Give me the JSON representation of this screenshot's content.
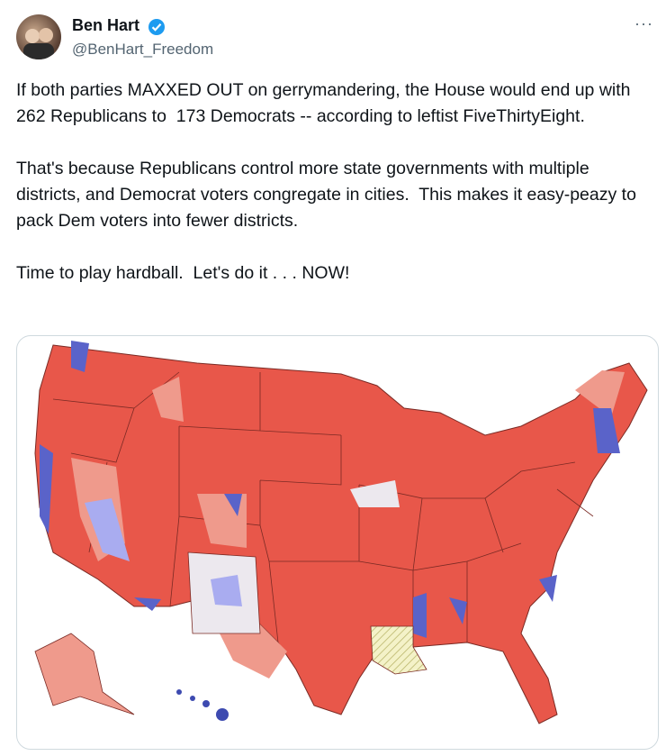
{
  "author": {
    "name": "Ben Hart",
    "handle": "@BenHart_Freedom"
  },
  "menu": "···",
  "tweet": {
    "paragraphs": [
      "If both parties MAXXED OUT on gerrymandering, the House would end up with 262 Republicans to  173 Democrats -- according to leftist FiveThirtyEight.",
      "That's because Republicans control more state governments with multiple districts, and Democrat voters congregate in cities.  This makes it easy-peazy to pack Dem voters into fewer districts.",
      "Time to play hardball.  Let's do it . . . NOW!"
    ]
  }
}
